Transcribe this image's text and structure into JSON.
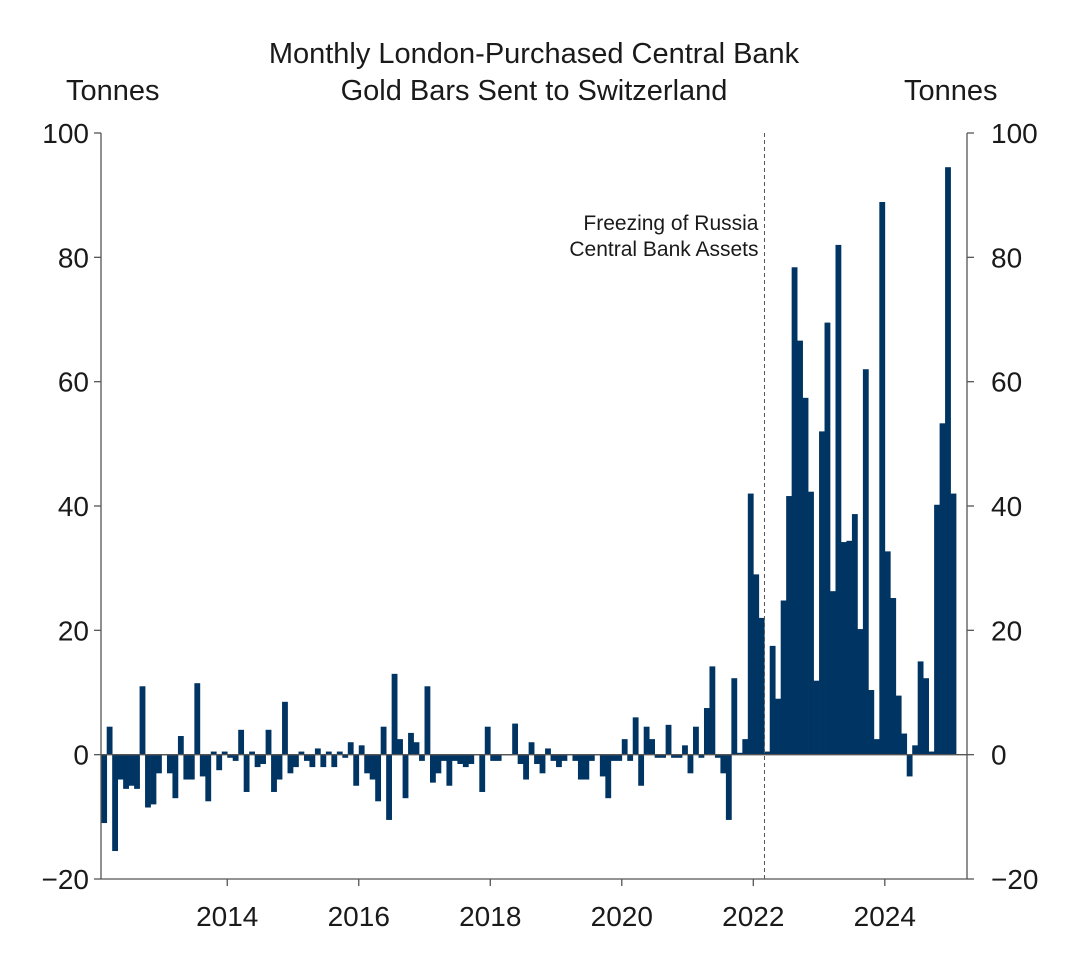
{
  "chart_data": {
    "type": "bar",
    "title_line1": "Monthly London-Purchased Central Bank",
    "title_line2": "Gold Bars Sent to Switzerland",
    "ylabel_left": "Tonnes",
    "ylabel_right": "Tonnes",
    "ylim": [
      -20,
      100
    ],
    "yticks": [
      -20,
      0,
      20,
      40,
      60,
      80,
      100
    ],
    "ytick_labels": [
      "−20",
      "0",
      "20",
      "40",
      "60",
      "80",
      "100"
    ],
    "xlim": [
      2012.08,
      2025.25
    ],
    "xticks": [
      2014,
      2016,
      2018,
      2020,
      2022,
      2024
    ],
    "xtick_labels": [
      "2014",
      "2016",
      "2018",
      "2020",
      "2022",
      "2024"
    ],
    "bar_color": "#003462",
    "grid": false,
    "annotation": {
      "x": 2022.17,
      "line1": "Freezing of Russia",
      "line2": "Central Bank Assets"
    },
    "start": "2012-02",
    "values": [
      -11,
      4.5,
      -15.5,
      -4,
      -5.5,
      -5,
      -5.5,
      11,
      -8.5,
      -8,
      -3,
      0,
      -3,
      -7,
      3,
      -4,
      -4,
      11.5,
      -3.5,
      -7.5,
      0.5,
      -2.5,
      0.5,
      -0.5,
      -1,
      4,
      -6,
      0.5,
      -2,
      -1.5,
      4,
      -6,
      -4,
      8.5,
      -3,
      -2,
      0.5,
      -1,
      -2,
      1,
      -2,
      0.5,
      -2,
      0.5,
      -0.5,
      2,
      -5,
      1.5,
      -3,
      -4,
      -7.5,
      4.5,
      -10.5,
      13,
      2.5,
      -7,
      3.5,
      2,
      -1,
      11,
      -4.5,
      -3,
      -1,
      -5,
      -1,
      -1.5,
      -2,
      -1.5,
      0,
      -6,
      4.5,
      -1,
      -1,
      0,
      0,
      5,
      -1.5,
      -4,
      2,
      -1.5,
      -3,
      1,
      -1,
      -2,
      -1,
      0,
      -1,
      -4,
      -4,
      -1,
      0,
      -3.5,
      -7,
      -1,
      -1,
      2.5,
      -1,
      6,
      -5,
      4.5,
      2.5,
      -0.5,
      -0.5,
      4.8,
      -0.5,
      -0.5,
      1.5,
      -3,
      4.5,
      -0.5,
      7.5,
      14.2,
      -0.5,
      -3,
      -10.5,
      12.3,
      0.3,
      2.5,
      42,
      29,
      22,
      0.5,
      17.5,
      9,
      24.8,
      41.6,
      78.4,
      66.6,
      57.4,
      42.3,
      11.9,
      52,
      69.5,
      26.3,
      82,
      34.2,
      34.4,
      38.7,
      20.2,
      62,
      10.4,
      2.5,
      88.9,
      32.7,
      25.2,
      9.5,
      3.4,
      -3.5,
      1.5,
      15,
      12.3,
      0.5,
      40.2,
      53.3,
      94.5,
      42
    ]
  }
}
